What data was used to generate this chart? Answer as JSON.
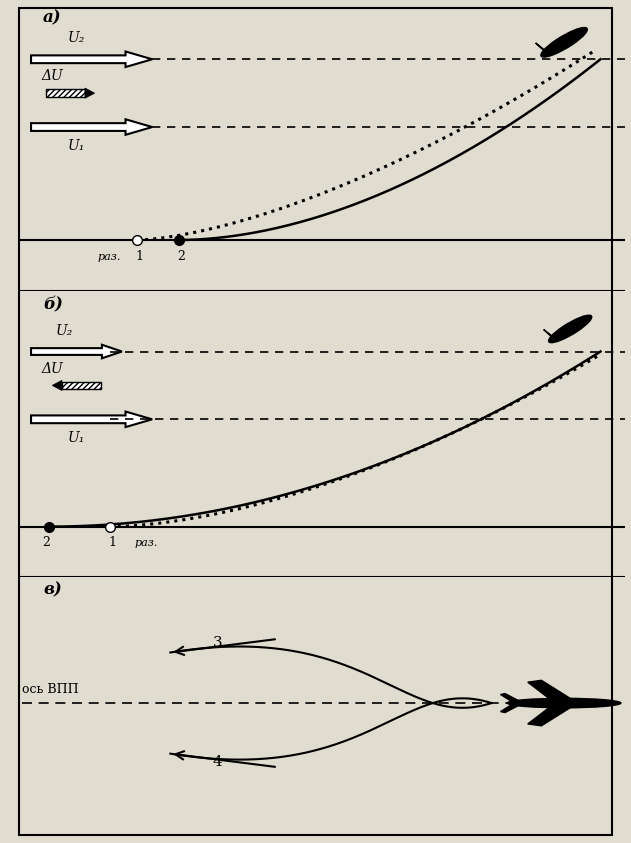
{
  "bg_color": "#e0dcd0",
  "panel_a_label": "а)",
  "panel_b_label": "б)",
  "panel_c_label": "в)",
  "panel_a_u2_label": "U₂",
  "panel_a_delta_label": "ΔU",
  "panel_a_u1_label": "U₁",
  "panel_b_u2_label": "U₂",
  "panel_b_delta_label": "ΔU",
  "panel_b_u1_label": "U₁",
  "panel_c_axis_label": "ось ВПП",
  "panel_c_label3": "3",
  "panel_c_label4": "4",
  "raz_label": "раз.",
  "point1_label": "1",
  "point2_label": "2"
}
